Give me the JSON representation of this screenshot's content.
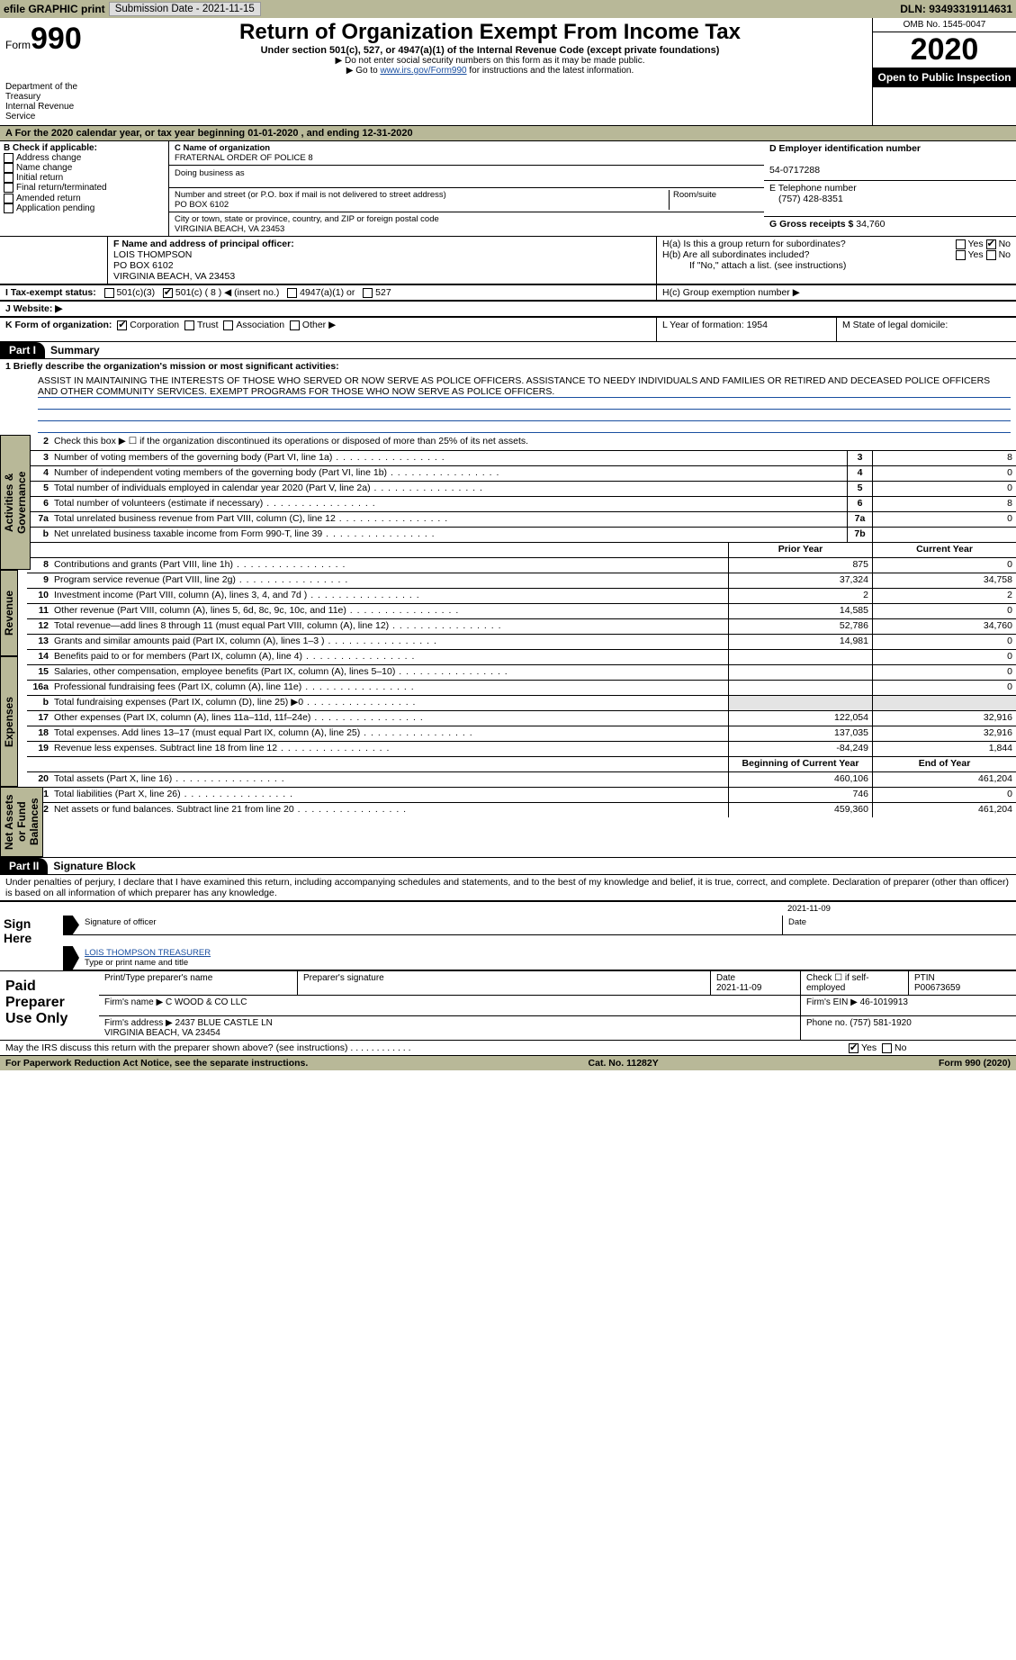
{
  "topbar": {
    "efile": "efile GRAPHIC print",
    "subdate_lbl": "Submission Date - 2021-11-15",
    "dln_lbl": "DLN: 93493319114631"
  },
  "header": {
    "form_word": "Form",
    "form_num": "990",
    "dept": "Department of the Treasury\nInternal Revenue Service",
    "title": "Return of Organization Exempt From Income Tax",
    "sub": "Under section 501(c), 527, or 4947(a)(1) of the Internal Revenue Code (except private foundations)",
    "note1": "▶ Do not enter social security numbers on this form as it may be made public.",
    "note2_a": "▶ Go to ",
    "note2_link": "www.irs.gov/Form990",
    "note2_b": " for instructions and the latest information.",
    "omb": "OMB No. 1545-0047",
    "year": "2020",
    "open": "Open to Public Inspection"
  },
  "A": {
    "line": "A For the 2020 calendar year, or tax year beginning 01-01-2020   , and ending 12-31-2020"
  },
  "B": {
    "hdr": "B Check if applicable:",
    "items": [
      "Address change",
      "Name change",
      "Initial return",
      "Final return/terminated",
      "Amended return",
      "Application pending"
    ]
  },
  "C": {
    "name_lbl": "C Name of organization",
    "name": "FRATERNAL ORDER OF POLICE 8",
    "dba_lbl": "Doing business as",
    "dba": "",
    "street_lbl": "Number and street (or P.O. box if mail is not delivered to street address)",
    "room_lbl": "Room/suite",
    "street": "PO BOX 6102",
    "city_lbl": "City or town, state or province, country, and ZIP or foreign postal code",
    "city": "VIRGINIA BEACH, VA  23453"
  },
  "D": {
    "lbl": "D Employer identification number",
    "val": "54-0717288"
  },
  "E": {
    "lbl": "E Telephone number",
    "val": "(757) 428-8351"
  },
  "G": {
    "lbl": "G Gross receipts $ ",
    "val": "34,760"
  },
  "F": {
    "lbl": "F  Name and address of principal officer:",
    "name": "LOIS THOMPSON",
    "addr1": "PO BOX 6102",
    "addr2": "VIRGINIA BEACH, VA  23453"
  },
  "H": {
    "a": "H(a)  Is this a group return for subordinates?",
    "b": "H(b)  Are all subordinates included?",
    "note": "If \"No,\" attach a list. (see instructions)",
    "c": "H(c)  Group exemption number ▶",
    "yes": "Yes",
    "no": "No"
  },
  "I": {
    "lbl": "I   Tax-exempt status:",
    "opts": [
      "501(c)(3)",
      "501(c) ( 8 ) ◀ (insert no.)",
      "4947(a)(1) or",
      "527"
    ]
  },
  "J": {
    "lbl": "J   Website: ▶"
  },
  "K": {
    "lbl": "K Form of organization:",
    "opts": [
      "Corporation",
      "Trust",
      "Association",
      "Other ▶"
    ]
  },
  "L": {
    "lbl": "L Year of formation: 1954"
  },
  "M": {
    "lbl": "M State of legal domicile:"
  },
  "partI": {
    "num": "Part I",
    "title": "Summary"
  },
  "mission": {
    "lbl": "1   Briefly describe the organization's mission or most significant activities:",
    "text": "ASSIST IN MAINTAINING THE INTERESTS OF THOSE WHO SERVED OR NOW SERVE AS POLICE OFFICERS. ASSISTANCE TO NEEDY INDIVIDUALS AND FAMILIES OR RETIRED AND DECEASED POLICE OFFICERS AND OTHER COMMUNITY SERVICES. EXEMPT PROGRAMS FOR THOSE WHO NOW SERVE AS POLICE OFFICERS."
  },
  "lines_top": [
    {
      "n": "2",
      "t": "Check this box ▶ ☐ if the organization discontinued its operations or disposed of more than 25% of its net assets."
    },
    {
      "n": "3",
      "t": "Number of voting members of the governing body (Part VI, line 1a)",
      "box": "3",
      "v": "8"
    },
    {
      "n": "4",
      "t": "Number of independent voting members of the governing body (Part VI, line 1b)",
      "box": "4",
      "v": "0"
    },
    {
      "n": "5",
      "t": "Total number of individuals employed in calendar year 2020 (Part V, line 2a)",
      "box": "5",
      "v": "0"
    },
    {
      "n": "6",
      "t": "Total number of volunteers (estimate if necessary)",
      "box": "6",
      "v": "8"
    },
    {
      "n": "7a",
      "t": "Total unrelated business revenue from Part VIII, column (C), line 12",
      "box": "7a",
      "v": "0"
    },
    {
      "n": "b",
      "t": "Net unrelated business taxable income from Form 990-T, line 39",
      "box": "7b",
      "v": ""
    }
  ],
  "col_hdr": {
    "prior": "Prior Year",
    "current": "Current Year",
    "boy": "Beginning of Current Year",
    "eoy": "End of Year"
  },
  "revenue": [
    {
      "n": "8",
      "t": "Contributions and grants (Part VIII, line 1h)",
      "p": "875",
      "c": "0"
    },
    {
      "n": "9",
      "t": "Program service revenue (Part VIII, line 2g)",
      "p": "37,324",
      "c": "34,758"
    },
    {
      "n": "10",
      "t": "Investment income (Part VIII, column (A), lines 3, 4, and 7d )",
      "p": "2",
      "c": "2"
    },
    {
      "n": "11",
      "t": "Other revenue (Part VIII, column (A), lines 5, 6d, 8c, 9c, 10c, and 11e)",
      "p": "14,585",
      "c": "0"
    },
    {
      "n": "12",
      "t": "Total revenue—add lines 8 through 11 (must equal Part VIII, column (A), line 12)",
      "p": "52,786",
      "c": "34,760"
    }
  ],
  "expenses": [
    {
      "n": "13",
      "t": "Grants and similar amounts paid (Part IX, column (A), lines 1–3 )",
      "p": "14,981",
      "c": "0"
    },
    {
      "n": "14",
      "t": "Benefits paid to or for members (Part IX, column (A), line 4)",
      "p": "",
      "c": "0"
    },
    {
      "n": "15",
      "t": "Salaries, other compensation, employee benefits (Part IX, column (A), lines 5–10)",
      "p": "",
      "c": "0"
    },
    {
      "n": "16a",
      "t": "Professional fundraising fees (Part IX, column (A), line 11e)",
      "p": "",
      "c": "0"
    },
    {
      "n": "b",
      "t": "Total fundraising expenses (Part IX, column (D), line 25) ▶0",
      "p": "",
      "c": "",
      "noval": true
    },
    {
      "n": "17",
      "t": "Other expenses (Part IX, column (A), lines 11a–11d, 11f–24e)",
      "p": "122,054",
      "c": "32,916"
    },
    {
      "n": "18",
      "t": "Total expenses. Add lines 13–17 (must equal Part IX, column (A), line 25)",
      "p": "137,035",
      "c": "32,916"
    },
    {
      "n": "19",
      "t": "Revenue less expenses. Subtract line 18 from line 12",
      "p": "-84,249",
      "c": "1,844"
    }
  ],
  "netassets": [
    {
      "n": "20",
      "t": "Total assets (Part X, line 16)",
      "p": "460,106",
      "c": "461,204"
    },
    {
      "n": "21",
      "t": "Total liabilities (Part X, line 26)",
      "p": "746",
      "c": "0"
    },
    {
      "n": "22",
      "t": "Net assets or fund balances. Subtract line 21 from line 20",
      "p": "459,360",
      "c": "461,204"
    }
  ],
  "tabs": {
    "ag": "Activities & Governance",
    "rev": "Revenue",
    "exp": "Expenses",
    "na": "Net Assets or Fund Balances"
  },
  "partII": {
    "num": "Part II",
    "title": "Signature Block",
    "decl": "Under penalties of perjury, I declare that I have examined this return, including accompanying schedules and statements, and to the best of my knowledge and belief, it is true, correct, and complete. Declaration of preparer (other than officer) is based on all information of which preparer has any knowledge."
  },
  "sign": {
    "here": "Sign Here",
    "sig_lbl": "Signature of officer",
    "date_lbl": "Date",
    "date": "2021-11-09",
    "name": "LOIS THOMPSON TREASURER",
    "name_lbl": "Type or print name and title"
  },
  "paid": {
    "lbl": "Paid Preparer Use Only",
    "p1": "Print/Type preparer's name",
    "p2": "Preparer's signature",
    "p3_lbl": "Date",
    "p3": "2021-11-09",
    "p4": "Check ☐ if self-employed",
    "p5_lbl": "PTIN",
    "p5": "P00673659",
    "firm_lbl": "Firm's name   ▶",
    "firm": "C WOOD & CO LLC",
    "ein_lbl": "Firm's EIN ▶",
    "ein": "46-1019913",
    "addr_lbl": "Firm's address ▶",
    "addr": "2437 BLUE CASTLE LN\nVIRGINIA BEACH, VA  23454",
    "phone_lbl": "Phone no.",
    "phone": "(757) 581-1920"
  },
  "discuss": {
    "txt": "May the IRS discuss this return with the preparer shown above? (see instructions)",
    "yes": "Yes",
    "no": "No"
  },
  "footer": {
    "l": "For Paperwork Reduction Act Notice, see the separate instructions.",
    "m": "Cat. No. 11282Y",
    "r": "Form 990 (2020)"
  }
}
